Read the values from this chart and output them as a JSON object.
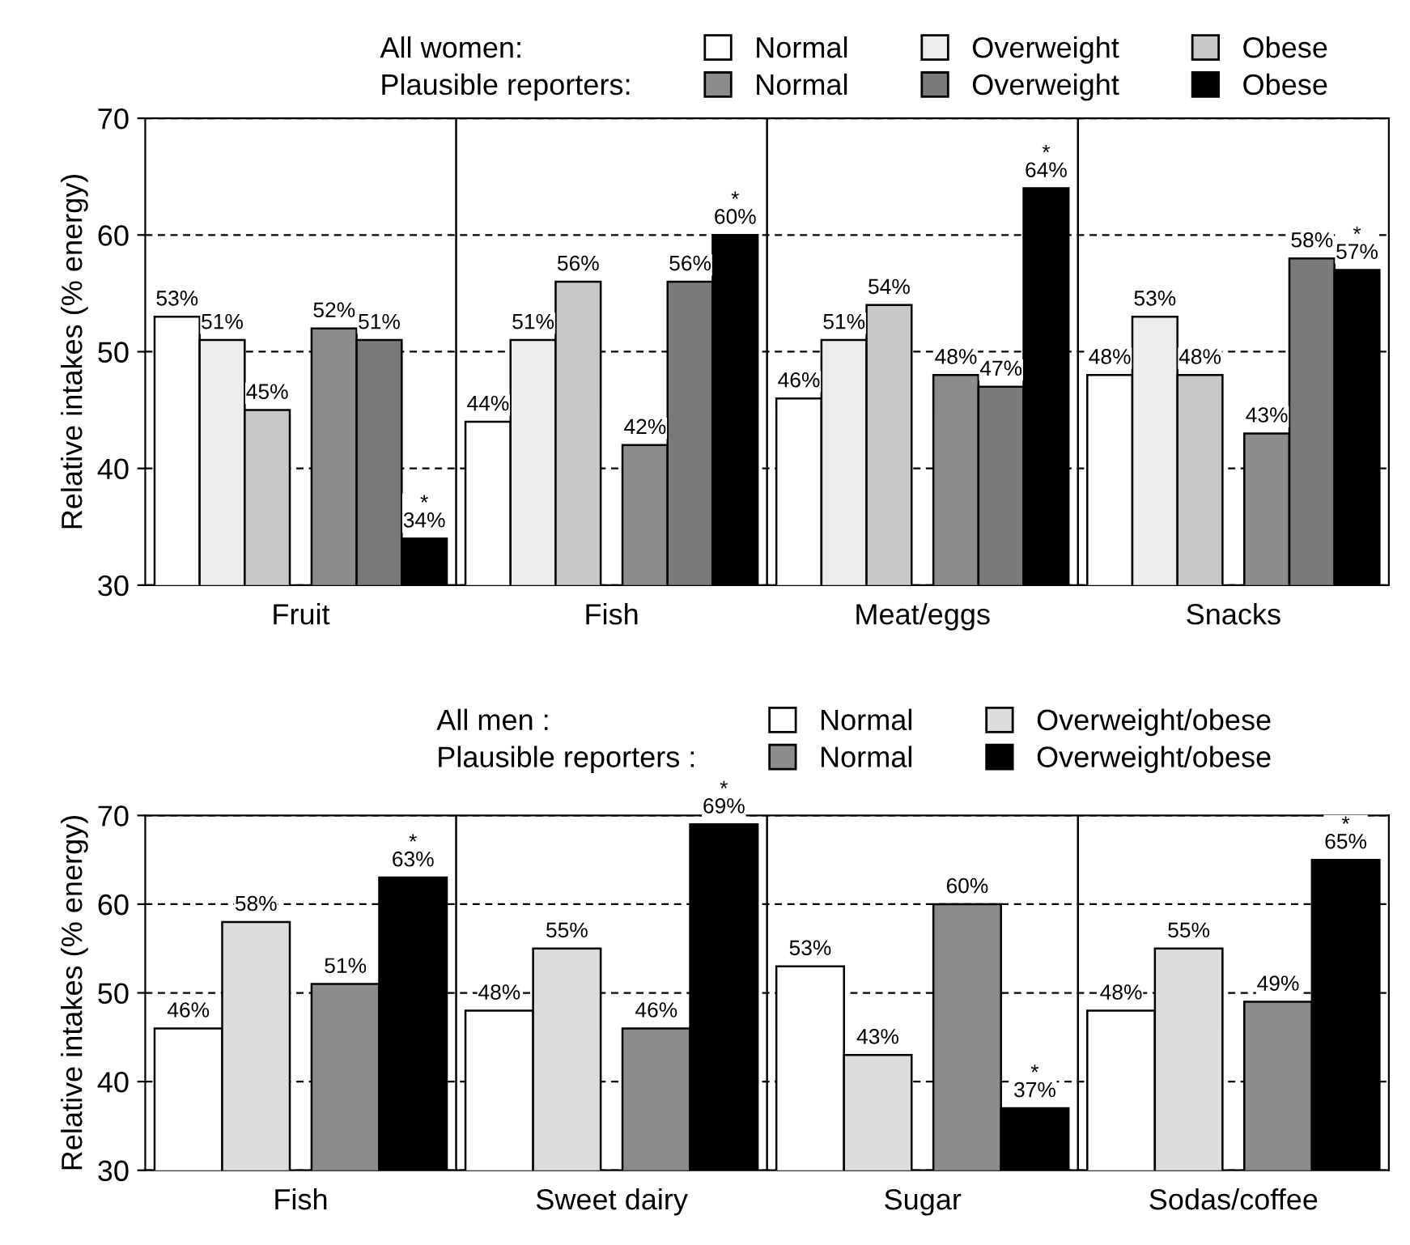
{
  "chart_data": [
    {
      "type": "bar",
      "ylabel": "Relative intakes (% energy)",
      "categories": [
        "Fruit",
        "Fish",
        "Meat/eggs",
        "Snacks"
      ],
      "ylim": [
        30,
        70
      ],
      "yticks": [
        30,
        40,
        50,
        60,
        70
      ],
      "grid": "y",
      "legend": "top",
      "annotations": [
        "All women:",
        "Plausible reporters:"
      ],
      "series": [
        {
          "name": "Normal",
          "color": "#ffffff",
          "values": [
            53,
            44,
            46,
            48
          ],
          "value_labels": [
            "53%",
            "44%",
            "46%",
            "48%"
          ]
        },
        {
          "name": "Overweight",
          "color": "#ececec",
          "values": [
            51,
            51,
            51,
            53
          ],
          "value_labels": [
            "51%",
            "51%",
            "51%",
            "53%"
          ]
        },
        {
          "name": "Obese",
          "color": "#c8c8c8",
          "values": [
            45,
            56,
            54,
            48
          ],
          "value_labels": [
            "45%",
            "56%",
            "54%",
            "48%"
          ]
        },
        {
          "name": "Normal",
          "color": "#8c8c8c",
          "values": [
            52,
            42,
            48,
            43
          ],
          "value_labels": [
            "52%",
            "42%",
            "48%",
            "43%"
          ]
        },
        {
          "name": "Overweight",
          "color": "#7a7a7a",
          "values": [
            51,
            56,
            47,
            58
          ],
          "value_labels": [
            "51%",
            "56%",
            "47%",
            "58%"
          ]
        },
        {
          "name": "Obese",
          "color": "#000000",
          "values": [
            34,
            60,
            64,
            57
          ],
          "value_labels": [
            "*\n34%",
            "*\n60%",
            "*\n64%",
            "*\n57%"
          ]
        }
      ]
    },
    {
      "type": "bar",
      "ylabel": "Relative intakes (% energy)",
      "categories": [
        "Fish",
        "Sweet dairy",
        "Sugar",
        "Sodas/coffee"
      ],
      "ylim": [
        30,
        70
      ],
      "yticks": [
        30,
        40,
        50,
        60,
        70
      ],
      "grid": "y",
      "legend": "top",
      "annotations": [
        "All men :",
        "Plausible reporters :"
      ],
      "series": [
        {
          "name": "Normal",
          "color": "#ffffff",
          "values": [
            46,
            48,
            53,
            48
          ],
          "value_labels": [
            "46%",
            "48%",
            "53%",
            "48%"
          ]
        },
        {
          "name": "Overweight/obese",
          "color": "#dcdcdc",
          "values": [
            58,
            55,
            43,
            55
          ],
          "value_labels": [
            "58%",
            "55%",
            "43%",
            "55%"
          ]
        },
        {
          "name": "Normal",
          "color": "#8c8c8c",
          "values": [
            51,
            46,
            60,
            49
          ],
          "value_labels": [
            "51%",
            "46%",
            "60%",
            "49%"
          ]
        },
        {
          "name": "Overweight/obese",
          "color": "#000000",
          "values": [
            63,
            69,
            37,
            65
          ],
          "value_labels": [
            "*\n63%",
            "*\n69%",
            "*\n37%",
            "*\n65%"
          ]
        }
      ]
    }
  ]
}
